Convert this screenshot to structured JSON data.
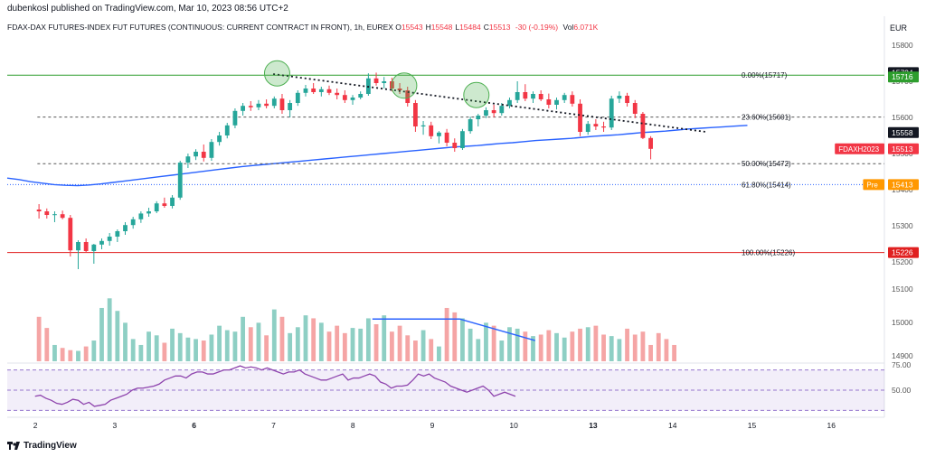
{
  "header": {
    "published": "dubenkosl published on TradingView.com, Mar 10, 2023 08:56 UTC+2",
    "symbol_line": "FDAX-DAX FUTURES-INDEX FUT FUTURES (CONTINUOUS: CURRENT CONTRACT IN FRONT), 1h, EUREX",
    "ohlc": [
      {
        "k": "O",
        "v": "15543"
      },
      {
        "k": "H",
        "v": "15548"
      },
      {
        "k": "L",
        "v": "15484"
      },
      {
        "k": "C",
        "v": "15513"
      }
    ],
    "change": "-30 (-0.19%)",
    "vol_label": "Vol",
    "vol_value": "6.071K",
    "currency": "EUR"
  },
  "footer": {
    "brand": "TradingView"
  },
  "colors": {
    "up": "#26a69a",
    "down": "#f23645",
    "up_vol": "#8ecfc4",
    "down_vol": "#f5a5a5",
    "ma": "#2962ff",
    "rsi": "#8e44ad",
    "fib_top": "#2e9e2e",
    "fib_bottom": "#e02020",
    "fib_mid": "#555555",
    "pre": "#ff9800"
  },
  "chart_data": {
    "type": "candlestick",
    "timeframe": "1h",
    "price_range": [
      14900,
      15800
    ],
    "price_axis_ticks": [
      "15800",
      "15700",
      "15600",
      "15500",
      "15400",
      "15300",
      "15200",
      "15100",
      "15000",
      "14900"
    ],
    "time_axis_ticks": [
      {
        "label": "2",
        "x": 0
      },
      {
        "label": "3",
        "x": 10
      },
      {
        "label": "6",
        "x": 20
      },
      {
        "label": "7",
        "x": 30
      },
      {
        "label": "8",
        "x": 40
      },
      {
        "label": "9",
        "x": 50
      },
      {
        "label": "10",
        "x": 60
      },
      {
        "label": "13",
        "x": 70
      },
      {
        "label": "14",
        "x": 80
      },
      {
        "label": "15",
        "x": 90
      },
      {
        "label": "16",
        "x": 100
      }
    ],
    "x_range": [
      -3.5,
      107
    ],
    "candles": [
      {
        "o": 15345,
        "h": 15360,
        "l": 15320,
        "c": 15340
      },
      {
        "o": 15340,
        "h": 15348,
        "l": 15320,
        "c": 15330
      },
      {
        "o": 15330,
        "h": 15340,
        "l": 15310,
        "c": 15332
      },
      {
        "o": 15332,
        "h": 15342,
        "l": 15318,
        "c": 15322
      },
      {
        "o": 15322,
        "h": 15330,
        "l": 15215,
        "c": 15232
      },
      {
        "o": 15232,
        "h": 15260,
        "l": 15180,
        "c": 15255
      },
      {
        "o": 15255,
        "h": 15265,
        "l": 15225,
        "c": 15230
      },
      {
        "o": 15230,
        "h": 15250,
        "l": 15195,
        "c": 15248
      },
      {
        "o": 15248,
        "h": 15265,
        "l": 15235,
        "c": 15258
      },
      {
        "o": 15258,
        "h": 15280,
        "l": 15245,
        "c": 15270
      },
      {
        "o": 15270,
        "h": 15290,
        "l": 15255,
        "c": 15285
      },
      {
        "o": 15285,
        "h": 15310,
        "l": 15275,
        "c": 15302
      },
      {
        "o": 15302,
        "h": 15325,
        "l": 15292,
        "c": 15318
      },
      {
        "o": 15318,
        "h": 15340,
        "l": 15308,
        "c": 15334
      },
      {
        "o": 15334,
        "h": 15350,
        "l": 15325,
        "c": 15340
      },
      {
        "o": 15340,
        "h": 15368,
        "l": 15335,
        "c": 15362
      },
      {
        "o": 15362,
        "h": 15378,
        "l": 15350,
        "c": 15355
      },
      {
        "o": 15355,
        "h": 15385,
        "l": 15348,
        "c": 15378
      },
      {
        "o": 15378,
        "h": 15480,
        "l": 15372,
        "c": 15475
      },
      {
        "o": 15475,
        "h": 15500,
        "l": 15460,
        "c": 15492
      },
      {
        "o": 15492,
        "h": 15512,
        "l": 15482,
        "c": 15505
      },
      {
        "o": 15505,
        "h": 15525,
        "l": 15478,
        "c": 15488
      },
      {
        "o": 15488,
        "h": 15540,
        "l": 15480,
        "c": 15532
      },
      {
        "o": 15532,
        "h": 15560,
        "l": 15522,
        "c": 15550
      },
      {
        "o": 15550,
        "h": 15585,
        "l": 15542,
        "c": 15578
      },
      {
        "o": 15578,
        "h": 15625,
        "l": 15570,
        "c": 15618
      },
      {
        "o": 15618,
        "h": 15640,
        "l": 15605,
        "c": 15632
      },
      {
        "o": 15632,
        "h": 15645,
        "l": 15618,
        "c": 15628
      },
      {
        "o": 15628,
        "h": 15648,
        "l": 15620,
        "c": 15638
      },
      {
        "o": 15638,
        "h": 15650,
        "l": 15625,
        "c": 15632
      },
      {
        "o": 15632,
        "h": 15658,
        "l": 15625,
        "c": 15652
      },
      {
        "o": 15652,
        "h": 15665,
        "l": 15610,
        "c": 15620
      },
      {
        "o": 15620,
        "h": 15648,
        "l": 15600,
        "c": 15640
      },
      {
        "o": 15640,
        "h": 15675,
        "l": 15632,
        "c": 15668
      },
      {
        "o": 15668,
        "h": 15690,
        "l": 15658,
        "c": 15680
      },
      {
        "o": 15680,
        "h": 15695,
        "l": 15665,
        "c": 15670
      },
      {
        "o": 15670,
        "h": 15685,
        "l": 15658,
        "c": 15678
      },
      {
        "o": 15678,
        "h": 15688,
        "l": 15662,
        "c": 15668
      },
      {
        "o": 15668,
        "h": 15680,
        "l": 15650,
        "c": 15662
      },
      {
        "o": 15662,
        "h": 15675,
        "l": 15640,
        "c": 15648
      },
      {
        "o": 15648,
        "h": 15662,
        "l": 15635,
        "c": 15655
      },
      {
        "o": 15655,
        "h": 15672,
        "l": 15650,
        "c": 15665
      },
      {
        "o": 15665,
        "h": 15722,
        "l": 15660,
        "c": 15708
      },
      {
        "o": 15708,
        "h": 15724,
        "l": 15688,
        "c": 15695
      },
      {
        "o": 15695,
        "h": 15712,
        "l": 15680,
        "c": 15700
      },
      {
        "o": 15700,
        "h": 15710,
        "l": 15672,
        "c": 15680
      },
      {
        "o": 15680,
        "h": 15695,
        "l": 15665,
        "c": 15675
      },
      {
        "o": 15675,
        "h": 15685,
        "l": 15630,
        "c": 15640
      },
      {
        "o": 15640,
        "h": 15648,
        "l": 15560,
        "c": 15575
      },
      {
        "o": 15575,
        "h": 15590,
        "l": 15552,
        "c": 15578
      },
      {
        "o": 15578,
        "h": 15588,
        "l": 15540,
        "c": 15548
      },
      {
        "o": 15548,
        "h": 15562,
        "l": 15528,
        "c": 15558
      },
      {
        "o": 15558,
        "h": 15568,
        "l": 15520,
        "c": 15530
      },
      {
        "o": 15530,
        "h": 15542,
        "l": 15505,
        "c": 15515
      },
      {
        "o": 15515,
        "h": 15568,
        "l": 15510,
        "c": 15562
      },
      {
        "o": 15562,
        "h": 15602,
        "l": 15555,
        "c": 15595
      },
      {
        "o": 15595,
        "h": 15610,
        "l": 15575,
        "c": 15605
      },
      {
        "o": 15605,
        "h": 15628,
        "l": 15598,
        "c": 15620
      },
      {
        "o": 15620,
        "h": 15635,
        "l": 15600,
        "c": 15612
      },
      {
        "o": 15612,
        "h": 15640,
        "l": 15605,
        "c": 15632
      },
      {
        "o": 15632,
        "h": 15655,
        "l": 15625,
        "c": 15648
      },
      {
        "o": 15648,
        "h": 15700,
        "l": 15640,
        "c": 15670
      },
      {
        "o": 15670,
        "h": 15692,
        "l": 15645,
        "c": 15652
      },
      {
        "o": 15652,
        "h": 15672,
        "l": 15640,
        "c": 15665
      },
      {
        "o": 15665,
        "h": 15675,
        "l": 15645,
        "c": 15650
      },
      {
        "o": 15650,
        "h": 15666,
        "l": 15625,
        "c": 15635
      },
      {
        "o": 15635,
        "h": 15655,
        "l": 15622,
        "c": 15648
      },
      {
        "o": 15648,
        "h": 15668,
        "l": 15640,
        "c": 15662
      },
      {
        "o": 15662,
        "h": 15672,
        "l": 15630,
        "c": 15638
      },
      {
        "o": 15638,
        "h": 15650,
        "l": 15548,
        "c": 15560
      },
      {
        "o": 15560,
        "h": 15590,
        "l": 15552,
        "c": 15582
      },
      {
        "o": 15582,
        "h": 15595,
        "l": 15565,
        "c": 15575
      },
      {
        "o": 15575,
        "h": 15588,
        "l": 15560,
        "c": 15572
      },
      {
        "o": 15572,
        "h": 15660,
        "l": 15565,
        "c": 15652
      },
      {
        "o": 15652,
        "h": 15672,
        "l": 15640,
        "c": 15660
      },
      {
        "o": 15660,
        "h": 15668,
        "l": 15630,
        "c": 15640
      },
      {
        "o": 15640,
        "h": 15648,
        "l": 15598,
        "c": 15610
      },
      {
        "o": 15610,
        "h": 15615,
        "l": 15540,
        "c": 15543
      },
      {
        "o": 15543,
        "h": 15548,
        "l": 15484,
        "c": 15513
      }
    ],
    "volume_range": [
      0,
      100
    ],
    "volumes": [
      60,
      45,
      22,
      18,
      15,
      14,
      20,
      28,
      72,
      85,
      68,
      52,
      30,
      22,
      40,
      35,
      25,
      44,
      38,
      32,
      30,
      28,
      36,
      48,
      42,
      40,
      60,
      46,
      52,
      35,
      70,
      60,
      38,
      46,
      62,
      58,
      52,
      40,
      48,
      38,
      45,
      44,
      58,
      50,
      62,
      40,
      48,
      35,
      28,
      42,
      30,
      20,
      72,
      66,
      58,
      44,
      30,
      52,
      48,
      28,
      46,
      44,
      40,
      34,
      36,
      42,
      38,
      32,
      40,
      44,
      46,
      48,
      36,
      34,
      30,
      44,
      36,
      40,
      22,
      38,
      30,
      22
    ],
    "rsi_range": [
      25,
      75
    ],
    "rsi_ticks": [
      "75.00",
      "50.00"
    ],
    "rsi_band": [
      70,
      30
    ],
    "rsi": [
      44,
      45,
      42,
      40,
      37,
      36,
      38,
      41,
      40,
      36,
      38,
      34,
      35,
      36,
      40,
      42,
      44,
      46,
      50,
      52,
      52,
      53,
      54,
      56,
      60,
      62,
      64,
      64,
      62,
      66,
      68,
      68,
      66,
      66,
      68,
      70,
      70,
      72,
      74,
      72,
      73,
      72,
      70,
      72,
      70,
      68,
      66,
      68,
      68,
      70,
      66,
      64,
      62,
      60,
      60,
      62,
      64,
      66,
      60,
      62,
      62,
      64,
      66,
      64,
      58,
      56,
      52,
      54,
      54,
      55,
      60,
      66,
      64,
      66,
      62,
      60,
      58,
      54,
      52,
      50,
      48,
      50,
      52,
      54,
      50,
      44,
      46,
      48,
      46,
      44
    ],
    "moving_average": {
      "x_start": -3.5,
      "values": [
        15432,
        15428,
        15422,
        15418,
        15414,
        15412,
        15411,
        15413,
        15416,
        15420,
        15424,
        15428,
        15432,
        15436,
        15440,
        15444,
        15448,
        15452,
        15456,
        15460,
        15464,
        15467,
        15470,
        15473,
        15476,
        15479,
        15482,
        15485,
        15488,
        15491,
        15494,
        15497,
        15500,
        15503,
        15506,
        15509,
        15512,
        15515,
        15518,
        15520,
        15522,
        15525,
        15528,
        15530,
        15533,
        15536,
        15538,
        15540,
        15542,
        15545,
        15548,
        15550,
        15552,
        15555,
        15558,
        15560,
        15562,
        15565,
        15568,
        15570,
        15572,
        15574,
        15576,
        15578
      ]
    },
    "fibonacci": [
      {
        "label": "0.00%(15717)",
        "price": 15717,
        "tag": "15716",
        "style": "solid",
        "color": "#2e9e2e"
      },
      {
        "label": "23.60%(15601)",
        "price": 15601,
        "tag": "",
        "style": "dashed",
        "color": "#555555"
      },
      {
        "label": "50.00%(15472)",
        "price": 15472,
        "tag": "",
        "style": "dashed",
        "color": "#555555"
      },
      {
        "label": "61.80%(15414)",
        "price": 15414,
        "tag": "15413",
        "style": "dotted",
        "color": "#2962ff"
      },
      {
        "label": "100.00%(15226)",
        "price": 15226,
        "tag": "15226",
        "style": "solid",
        "color": "#e02020"
      }
    ],
    "price_tags": [
      {
        "text": "15724",
        "price": 15724,
        "bg": "#131722",
        "fg": "#ffffff"
      },
      {
        "text": "15558",
        "price": 15558,
        "bg": "#131722",
        "fg": "#ffffff"
      },
      {
        "text": "15513",
        "price": 15513,
        "bg": "#f23645",
        "fg": "#ffffff",
        "prefix": "FDAXH2023"
      },
      {
        "text": "15413",
        "price": 15413,
        "bg": "#ff9800",
        "fg": "#ffffff",
        "prefix": "Pre"
      }
    ],
    "trendline": {
      "x1": 30,
      "p1": 15720,
      "x2": 84.5,
      "p2": 15560
    },
    "circles": [
      {
        "x": 30.5,
        "price": 15722
      },
      {
        "x": 46.5,
        "price": 15688
      },
      {
        "x": 55.6,
        "price": 15662
      }
    ],
    "volume_trendline": {
      "x1": 42.5,
      "v1": 57,
      "x2": 53.5,
      "v2": 57,
      "x3": 63,
      "v3": 28
    }
  }
}
